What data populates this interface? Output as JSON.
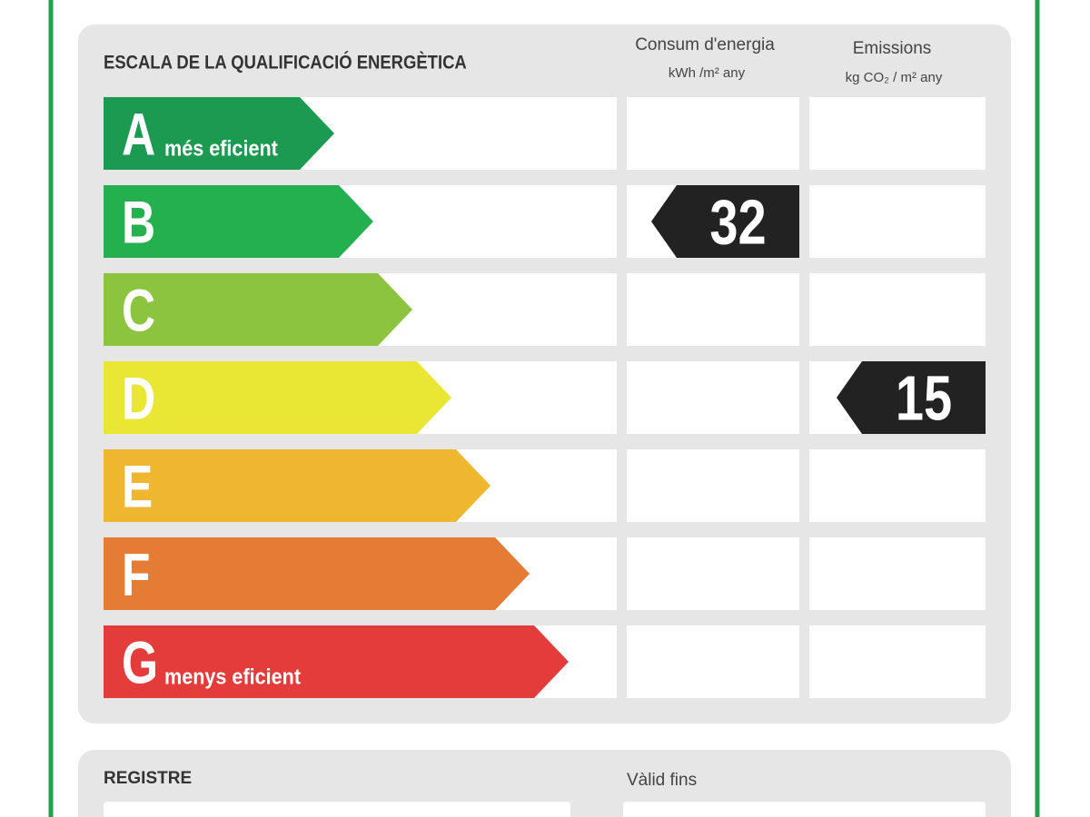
{
  "header": {
    "title": "ESCALA DE LA QUALIFICACIÓ ENERGÈTICA",
    "consumption": {
      "label": "Consum d'energia",
      "unit": "kWh /m² any"
    },
    "emissions": {
      "label": "Emissions",
      "unit": "kg CO₂ / m² any"
    }
  },
  "scale": [
    {
      "letter": "A",
      "note": "més eficient",
      "color": "#1d9a52"
    },
    {
      "letter": "B",
      "color": "#25b04f"
    },
    {
      "letter": "C",
      "color": "#8cc43f"
    },
    {
      "letter": "D",
      "color": "#e9e734"
    },
    {
      "letter": "E",
      "color": "#efb630"
    },
    {
      "letter": "F",
      "color": "#e47c36"
    },
    {
      "letter": "G",
      "note": "menys eficient",
      "color": "#e43c3a"
    }
  ],
  "ratings": {
    "consumption": {
      "class": "B",
      "value": 32
    },
    "emissions": {
      "class": "D",
      "value": 15
    }
  },
  "footer": {
    "register": "REGISTRE",
    "valid_until": "Vàlid fins"
  }
}
